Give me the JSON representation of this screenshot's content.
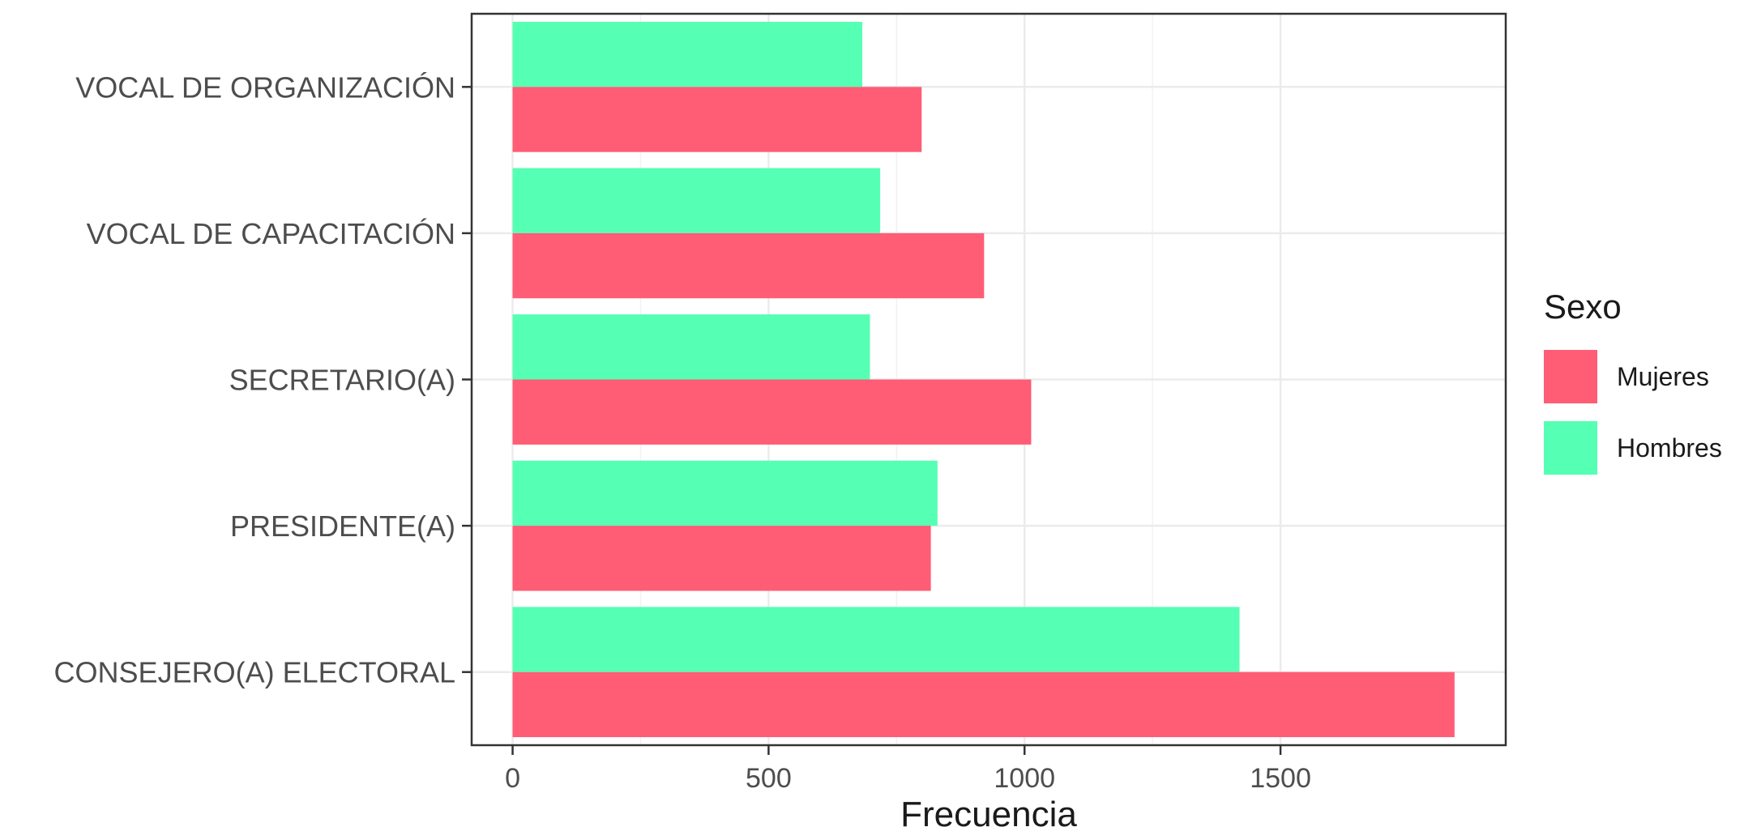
{
  "chart_data": {
    "type": "bar",
    "orientation": "horizontal",
    "categories": [
      "VOCAL DE ORGANIZACIÓN",
      "VOCAL DE CAPACITACIÓN",
      "SECRETARIO(A)",
      "PRESIDENTE(A)",
      "CONSEJERO(A) ELECTORAL"
    ],
    "series": [
      {
        "name": "Hombres",
        "color": "#55ffb3",
        "values": [
          683,
          718,
          698,
          830,
          1420
        ]
      },
      {
        "name": "Mujeres",
        "color": "#ff5c75",
        "values": [
          799,
          921,
          1013,
          817,
          1840
        ]
      }
    ],
    "xlabel": "Frecuencia",
    "xlim": [
      -80,
      1940
    ],
    "xticks": [
      0,
      500,
      1000,
      1500
    ],
    "xtick_labels": [
      "0",
      "500",
      "1000",
      "1500"
    ],
    "grid": true,
    "legend": {
      "title": "Sexo",
      "position": "right",
      "order": [
        "Mujeres",
        "Hombres"
      ]
    }
  }
}
